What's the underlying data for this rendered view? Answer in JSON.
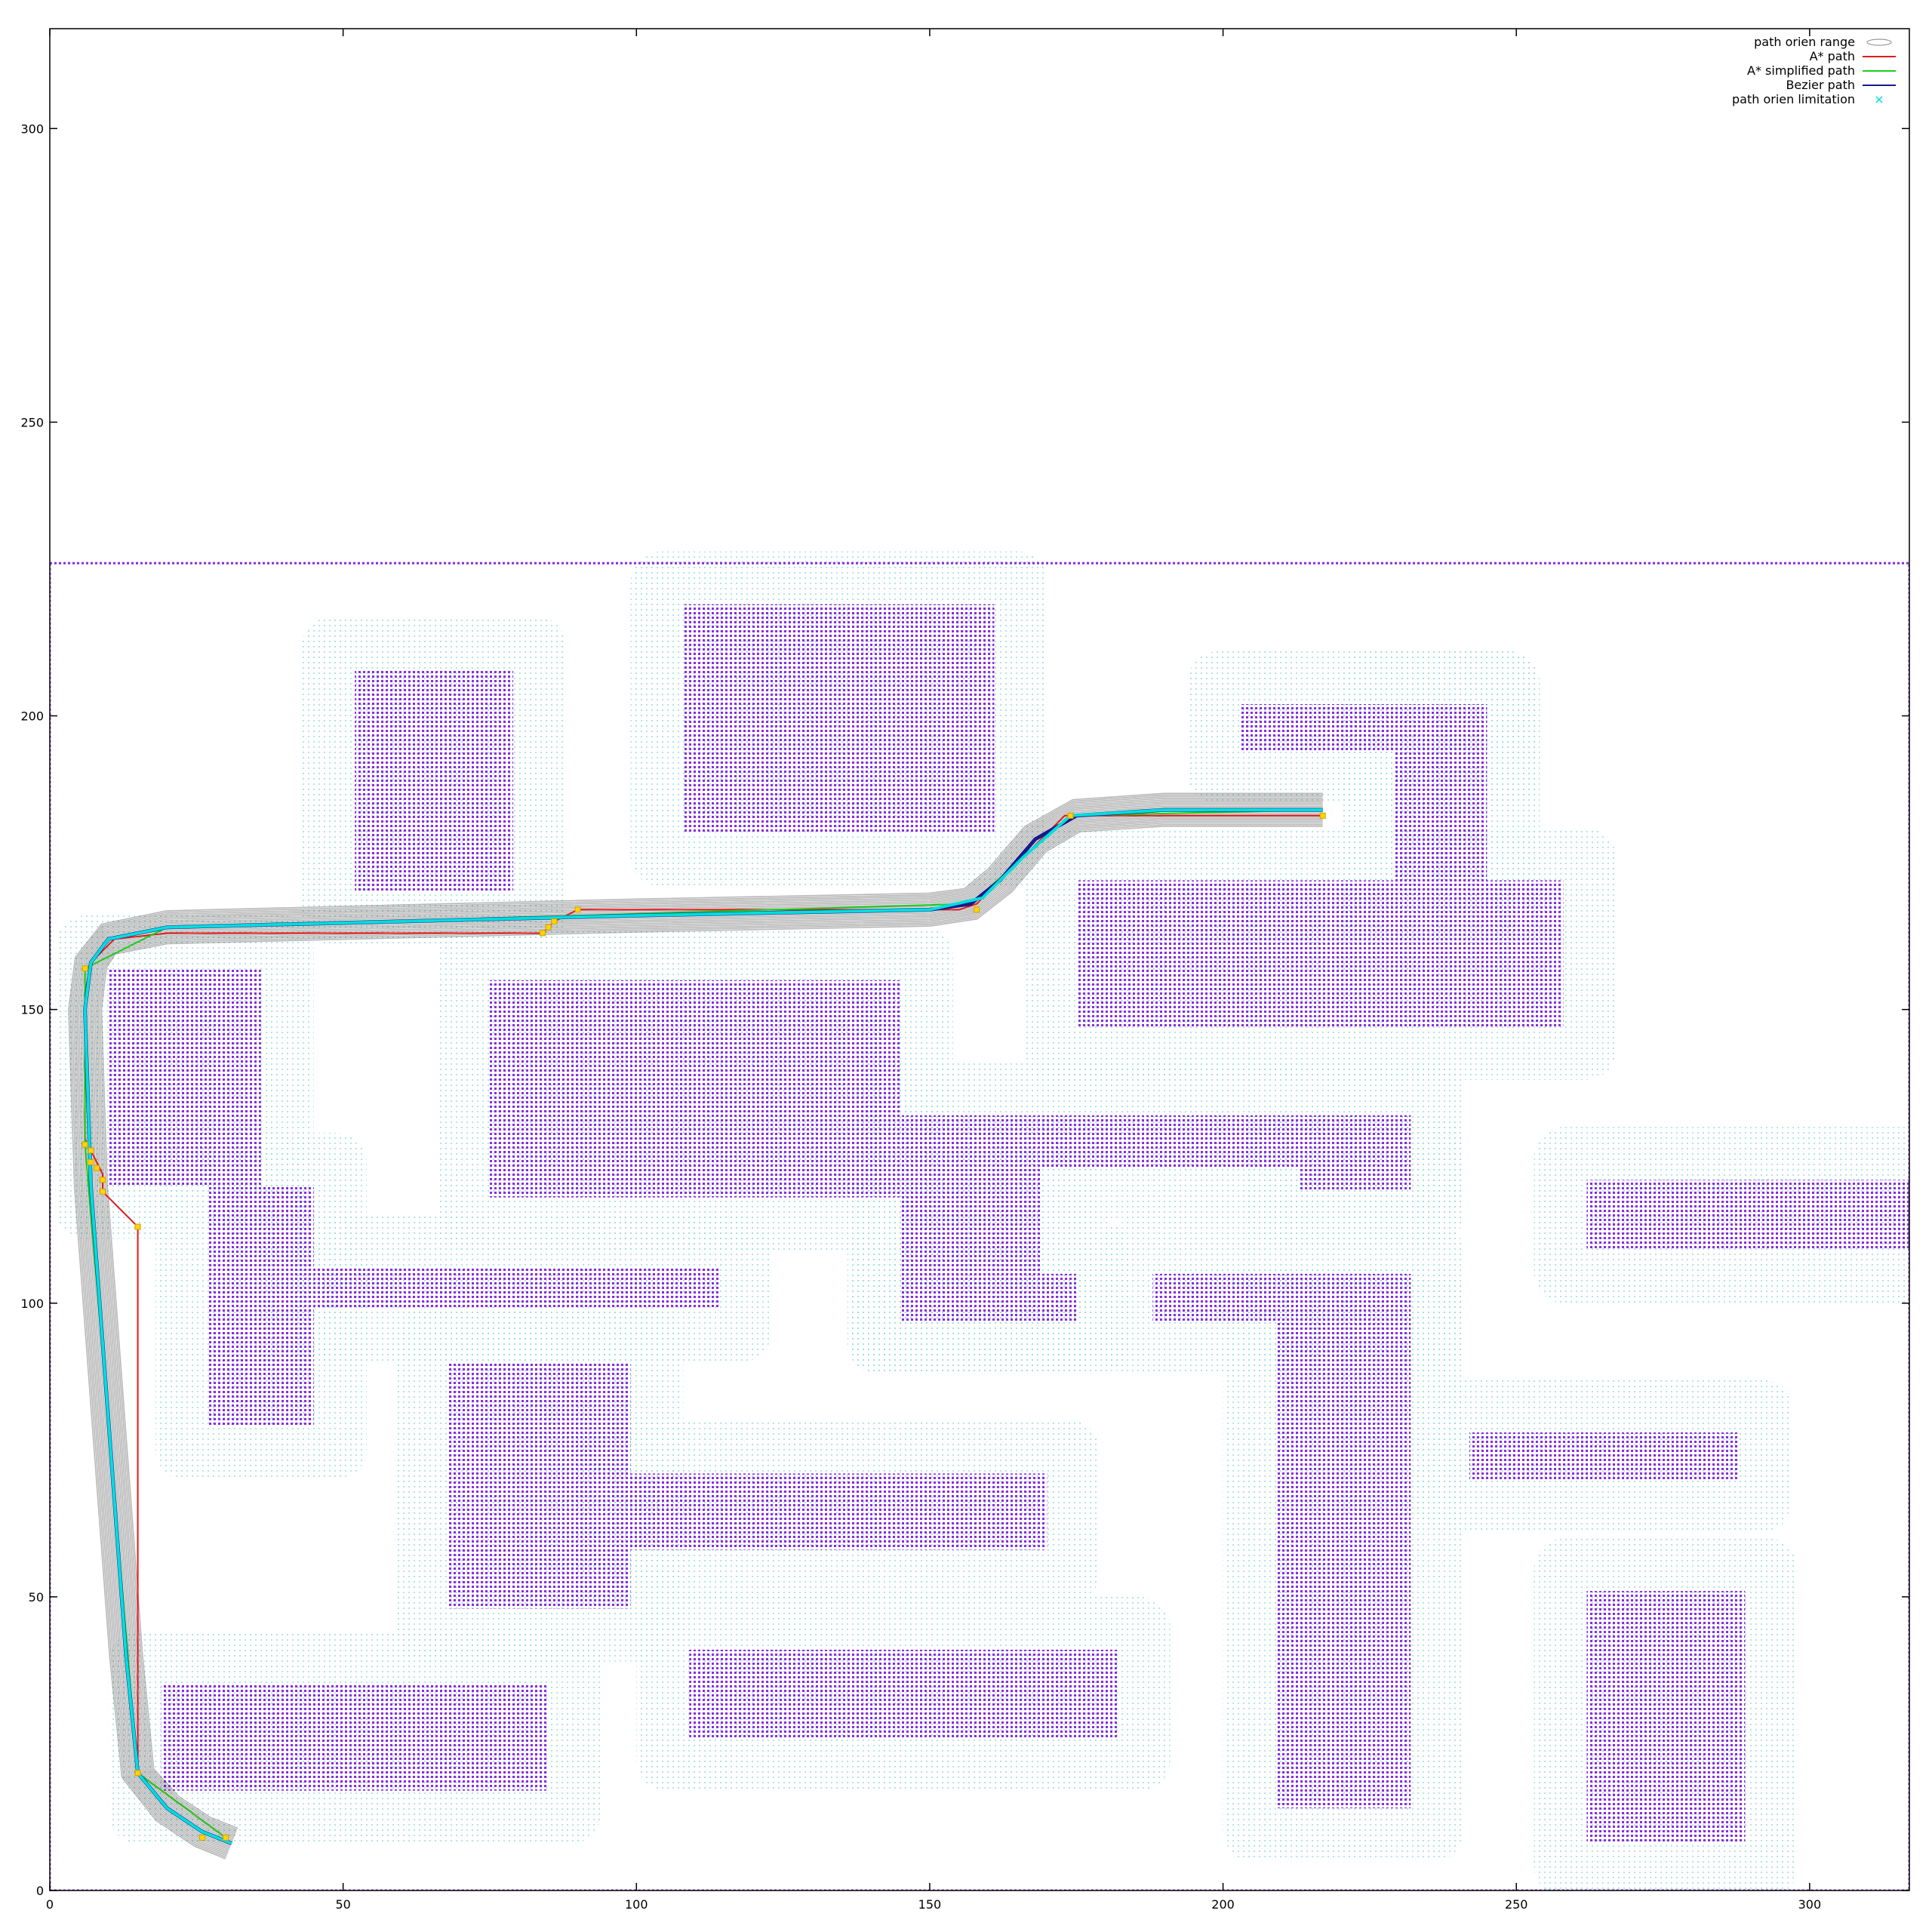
{
  "chart_data": {
    "type": "scatter",
    "title": "",
    "xlabel": "",
    "ylabel": "",
    "xlim": [
      0,
      317
    ],
    "ylim": [
      0,
      317
    ],
    "x_ticks": [
      0,
      50,
      100,
      150,
      200,
      250,
      300
    ],
    "y_ticks": [
      0,
      50,
      100,
      150,
      200,
      250,
      300
    ],
    "grid": false,
    "legend_position": "top-right",
    "legend": [
      {
        "label": "path orien range",
        "color": "#999999",
        "style": "ellipse"
      },
      {
        "label": "A* path",
        "color": "#e41a1c",
        "style": "line"
      },
      {
        "label": "A* simplified path",
        "color": "#1ccc1c",
        "style": "line"
      },
      {
        "label": "Bezier path",
        "color": "#1a1a8c",
        "style": "line"
      },
      {
        "label": "path orien limitation",
        "color": "#00dddd",
        "style": "cross"
      }
    ],
    "obstacle_color": "#8a2be2",
    "clearance_color": "#9adfe0",
    "boundary": [
      0,
      0,
      317,
      226
    ],
    "obstacles": [
      [
        108,
        180,
        161,
        219
      ],
      [
        52,
        170,
        79,
        208
      ],
      [
        203,
        194,
        245,
        202
      ],
      [
        229,
        172,
        245,
        202
      ],
      [
        175,
        147,
        258,
        172
      ],
      [
        10,
        120,
        36,
        157
      ],
      [
        75,
        118,
        145,
        155
      ],
      [
        145,
        123,
        232,
        132
      ],
      [
        145,
        97,
        169,
        123
      ],
      [
        145,
        97,
        175,
        105
      ],
      [
        213,
        119,
        232,
        123
      ],
      [
        27,
        79,
        45,
        120
      ],
      [
        45,
        99,
        114,
        106
      ],
      [
        262,
        109,
        317,
        121
      ],
      [
        188,
        97,
        232,
        105
      ],
      [
        209,
        14,
        232,
        97
      ],
      [
        68,
        48,
        99,
        90
      ],
      [
        99,
        58,
        170,
        71
      ],
      [
        242,
        70,
        288,
        78
      ],
      [
        262,
        8,
        289,
        51
      ],
      [
        19,
        17,
        85,
        35
      ],
      [
        109,
        26,
        182,
        41
      ]
    ],
    "astar_path": [
      [
        30,
        9
      ],
      [
        15,
        20
      ],
      [
        15,
        113
      ],
      [
        9,
        119
      ],
      [
        9,
        122
      ],
      [
        8,
        124
      ],
      [
        7,
        126
      ],
      [
        6,
        128
      ],
      [
        6,
        153
      ],
      [
        7,
        158
      ],
      [
        11,
        162
      ],
      [
        20,
        163
      ],
      [
        84,
        163
      ],
      [
        86,
        165
      ],
      [
        90,
        167
      ],
      [
        155,
        167
      ],
      [
        158,
        168
      ],
      [
        173,
        183
      ],
      [
        217,
        183
      ]
    ],
    "astar_simplified_path": [
      [
        30,
        9
      ],
      [
        15,
        20
      ],
      [
        6,
        127
      ],
      [
        6,
        157
      ],
      [
        20,
        164
      ],
      [
        90,
        166
      ],
      [
        157,
        168
      ],
      [
        174,
        183
      ],
      [
        217,
        184
      ]
    ],
    "bezier_path": [
      [
        31,
        8
      ],
      [
        26,
        10
      ],
      [
        20,
        14
      ],
      [
        15,
        20
      ],
      [
        13,
        40
      ],
      [
        10,
        80
      ],
      [
        7,
        120
      ],
      [
        6,
        150
      ],
      [
        7,
        158
      ],
      [
        10,
        162
      ],
      [
        20,
        164
      ],
      [
        60,
        165
      ],
      [
        100,
        166
      ],
      [
        150,
        167
      ],
      [
        157,
        168
      ],
      [
        162,
        172
      ],
      [
        168,
        179
      ],
      [
        175,
        183
      ],
      [
        190,
        184
      ],
      [
        217,
        184
      ]
    ],
    "orien_limitation_path": [
      [
        31,
        8
      ],
      [
        26,
        10
      ],
      [
        20,
        14
      ],
      [
        15,
        20
      ],
      [
        13,
        40
      ],
      [
        10,
        80
      ],
      [
        7,
        120
      ],
      [
        6,
        150
      ],
      [
        7,
        158
      ],
      [
        10,
        162
      ],
      [
        20,
        164
      ],
      [
        60,
        165
      ],
      [
        100,
        166
      ],
      [
        150,
        167
      ],
      [
        159,
        169
      ],
      [
        166,
        176
      ],
      [
        174,
        183
      ],
      [
        190,
        184
      ],
      [
        217,
        184
      ]
    ],
    "waypoint_markers": [
      [
        30,
        9
      ],
      [
        26,
        9
      ],
      [
        15,
        20
      ],
      [
        15,
        113
      ],
      [
        9,
        119
      ],
      [
        9,
        121
      ],
      [
        8,
        123
      ],
      [
        7,
        124
      ],
      [
        7,
        126
      ],
      [
        6,
        127
      ],
      [
        6,
        157
      ],
      [
        84,
        163
      ],
      [
        85,
        164
      ],
      [
        86,
        165
      ],
      [
        90,
        167
      ],
      [
        158,
        167
      ],
      [
        174,
        183
      ],
      [
        217,
        183
      ]
    ]
  }
}
